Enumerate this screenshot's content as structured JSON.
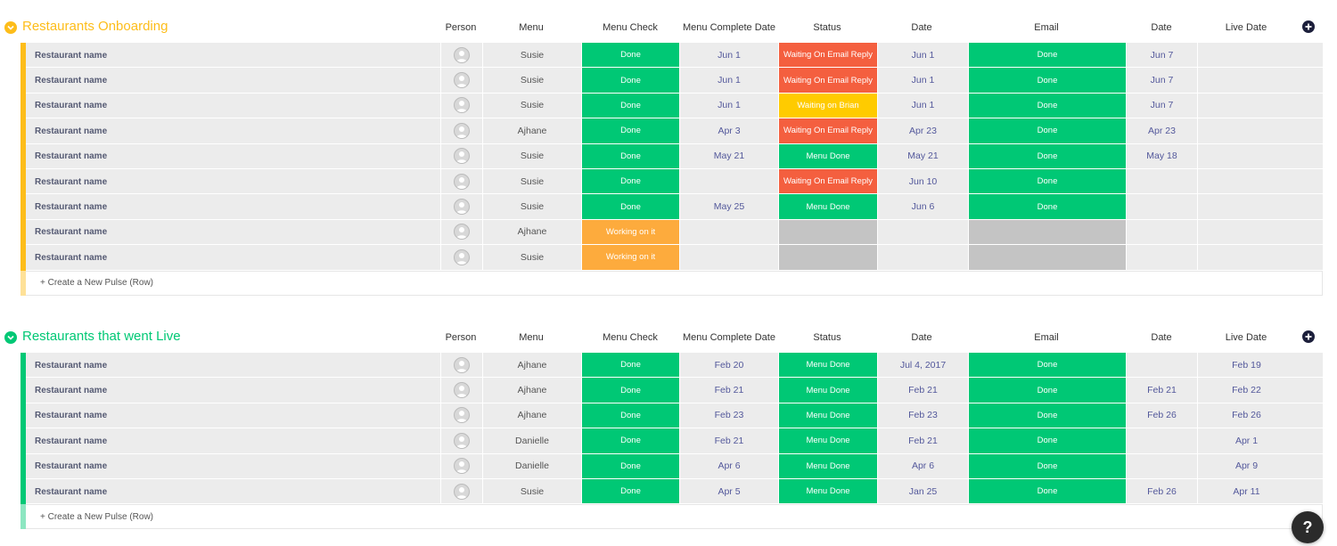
{
  "columns": [
    "Person",
    "Menu",
    "Menu Check",
    "Menu Complete Date",
    "Status",
    "Date",
    "Email",
    "Date",
    "Live Date"
  ],
  "colors": {
    "onboarding": "#fdbd1a",
    "live": "#00c875",
    "done": "#00c875",
    "waiting_email": "#f45f3f",
    "waiting_brian": "#ffcb00",
    "working": "#fdab3d",
    "empty": "#c4c4c4"
  },
  "groups": [
    {
      "title": "Restaurants Onboarding",
      "color": "#fdbd1a",
      "new_row_label": "+ Create a New Pulse (Row)",
      "rows": [
        {
          "name": "Restaurant name",
          "menu": "Susie",
          "menu_check": "Done",
          "menu_check_color": "#00c875",
          "menu_complete_date": "Jun 1",
          "status": "Waiting On Email Reply",
          "status_color": "#f45f3f",
          "date": "Jun 1",
          "email": "Done",
          "email_color": "#00c875",
          "date2": "Jun 7",
          "live_date": ""
        },
        {
          "name": "Restaurant name",
          "menu": "Susie",
          "menu_check": "Done",
          "menu_check_color": "#00c875",
          "menu_complete_date": "Jun 1",
          "status": "Waiting On Email Reply",
          "status_color": "#f45f3f",
          "date": "Jun 1",
          "email": "Done",
          "email_color": "#00c875",
          "date2": "Jun 7",
          "live_date": ""
        },
        {
          "name": "Restaurant name",
          "menu": "Susie",
          "menu_check": "Done",
          "menu_check_color": "#00c875",
          "menu_complete_date": "Jun 1",
          "status": "Waiting on Brian",
          "status_color": "#ffcb00",
          "date": "Jun 1",
          "email": "Done",
          "email_color": "#00c875",
          "date2": "Jun 7",
          "live_date": ""
        },
        {
          "name": "Restaurant name",
          "menu": "Ajhane",
          "menu_check": "Done",
          "menu_check_color": "#00c875",
          "menu_complete_date": "Apr 3",
          "status": "Waiting On Email Reply",
          "status_color": "#f45f3f",
          "date": "Apr 23",
          "email": "Done",
          "email_color": "#00c875",
          "date2": "Apr 23",
          "live_date": ""
        },
        {
          "name": "Restaurant name",
          "menu": "Susie",
          "menu_check": "Done",
          "menu_check_color": "#00c875",
          "menu_complete_date": "May 21",
          "status": "Menu Done",
          "status_color": "#00c875",
          "date": "May 21",
          "email": "Done",
          "email_color": "#00c875",
          "date2": "May 18",
          "live_date": ""
        },
        {
          "name": "Restaurant name",
          "menu": "Susie",
          "menu_check": "Done",
          "menu_check_color": "#00c875",
          "menu_complete_date": "",
          "status": "Waiting On Email Reply",
          "status_color": "#f45f3f",
          "date": "Jun 10",
          "email": "Done",
          "email_color": "#00c875",
          "date2": "",
          "live_date": ""
        },
        {
          "name": "Restaurant name",
          "menu": "Susie",
          "menu_check": "Done",
          "menu_check_color": "#00c875",
          "menu_complete_date": "May 25",
          "status": "Menu Done",
          "status_color": "#00c875",
          "date": "Jun 6",
          "email": "Done",
          "email_color": "#00c875",
          "date2": "",
          "live_date": ""
        },
        {
          "name": "Restaurant name",
          "menu": "Ajhane",
          "menu_check": "Working on it",
          "menu_check_color": "#fdab3d",
          "menu_complete_date": "",
          "status": "",
          "status_color": "#c4c4c4",
          "date": "",
          "email": "",
          "email_color": "#c4c4c4",
          "date2": "",
          "live_date": ""
        },
        {
          "name": "Restaurant name",
          "menu": "Susie",
          "menu_check": "Working on it",
          "menu_check_color": "#fdab3d",
          "menu_complete_date": "",
          "status": "",
          "status_color": "#c4c4c4",
          "date": "",
          "email": "",
          "email_color": "#c4c4c4",
          "date2": "",
          "live_date": ""
        }
      ]
    },
    {
      "title": "Restaurants that went Live",
      "color": "#00c875",
      "new_row_label": "+ Create a New Pulse (Row)",
      "rows": [
        {
          "name": "Restaurant name",
          "menu": "Ajhane",
          "menu_check": "Done",
          "menu_check_color": "#00c875",
          "menu_complete_date": "Feb 20",
          "status": "Menu Done",
          "status_color": "#00c875",
          "date": "Jul 4, 2017",
          "email": "Done",
          "email_color": "#00c875",
          "date2": "",
          "live_date": "Feb 19"
        },
        {
          "name": "Restaurant name",
          "menu": "Ajhane",
          "menu_check": "Done",
          "menu_check_color": "#00c875",
          "menu_complete_date": "Feb 21",
          "status": "Menu Done",
          "status_color": "#00c875",
          "date": "Feb 21",
          "email": "Done",
          "email_color": "#00c875",
          "date2": "Feb 21",
          "live_date": "Feb 22"
        },
        {
          "name": "Restaurant name",
          "menu": "Ajhane",
          "menu_check": "Done",
          "menu_check_color": "#00c875",
          "menu_complete_date": "Feb 23",
          "status": "Menu Done",
          "status_color": "#00c875",
          "date": "Feb 23",
          "email": "Done",
          "email_color": "#00c875",
          "date2": "Feb 26",
          "live_date": "Feb 26"
        },
        {
          "name": "Restaurant name",
          "menu": "Danielle",
          "menu_check": "Done",
          "menu_check_color": "#00c875",
          "menu_complete_date": "Feb 21",
          "status": "Menu Done",
          "status_color": "#00c875",
          "date": "Feb 21",
          "email": "Done",
          "email_color": "#00c875",
          "date2": "",
          "live_date": "Apr 1"
        },
        {
          "name": "Restaurant name",
          "menu": "Danielle",
          "menu_check": "Done",
          "menu_check_color": "#00c875",
          "menu_complete_date": "Apr 6",
          "status": "Menu Done",
          "status_color": "#00c875",
          "date": "Apr 6",
          "email": "Done",
          "email_color": "#00c875",
          "date2": "",
          "live_date": "Apr 9"
        },
        {
          "name": "Restaurant name",
          "menu": "Susie",
          "menu_check": "Done",
          "menu_check_color": "#00c875",
          "menu_complete_date": "Apr 5",
          "status": "Menu Done",
          "status_color": "#00c875",
          "date": "Jan 25",
          "email": "Done",
          "email_color": "#00c875",
          "date2": "Feb 26",
          "live_date": "Apr 11"
        }
      ]
    }
  ],
  "help": {
    "label": "?"
  }
}
